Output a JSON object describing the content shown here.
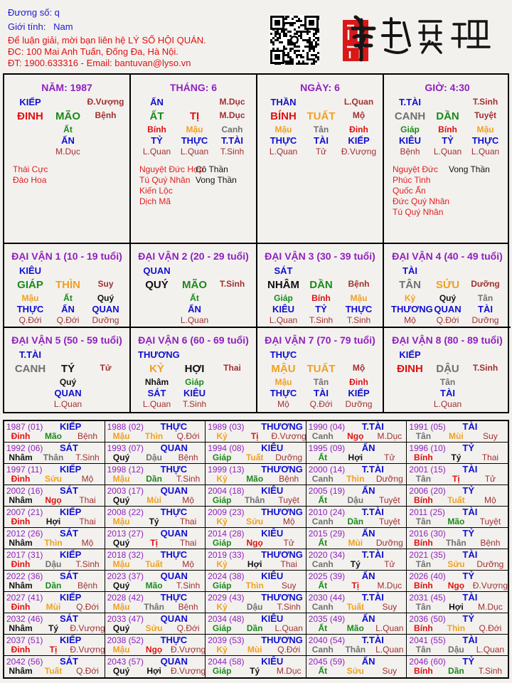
{
  "header": {
    "name_label": "Đương số:",
    "name_value": "q",
    "gender_label": "Giới tính:",
    "gender_value": "Nam",
    "contact_line": "Để luận giải, mời bạn liên hệ LÝ SỐ HỘI QUÁN.",
    "address_line": "ĐC: 100 Mai Anh Tuấn, Đống Đa, Hà Nội.",
    "phone_line": "ĐT: 1900.633316 - Email: bantuvan@lyso.vn",
    "logo_text": "南越數理"
  },
  "colors": {
    "wood": "#1a8a1a",
    "fire": "#e01010",
    "earth": "#f0a020",
    "metal": "#707070",
    "water": "#111111",
    "star": "#1010d0",
    "title": "#9020c0",
    "stage": "#a03030"
  },
  "pillars": [
    {
      "title": "NĂM: 1987",
      "star": "KIẾP",
      "stage_top": "Đ.Vượng",
      "stem": "ĐINH",
      "branch": "MÃO",
      "stage": "Bệnh",
      "hidden": [
        "",
        "Ất",
        ""
      ],
      "hidden_stars": [
        "",
        "ẤN",
        ""
      ],
      "hidden_stages": [
        "",
        "M.Dục",
        ""
      ],
      "shensha_left": [
        "Thái Cực",
        "Đào Hoa"
      ],
      "shensha_right": []
    },
    {
      "title": "THÁNG: 6",
      "star": "ẤN",
      "stage_top": "M.Dục",
      "stem": "ẤT",
      "branch": "TỊ",
      "stage": "M.Dục",
      "hidden": [
        "Bính",
        "Mậu",
        "Canh"
      ],
      "hidden_stars": [
        "TỶ",
        "THỰC",
        "T.TÀI"
      ],
      "hidden_stages": [
        "L.Quan",
        "L.Quan",
        "T.Sinh"
      ],
      "shensha_left": [
        "Nguyệt Đức Hợp",
        "Tú Quý Nhân",
        "Kiến Lộc",
        "Dịch Mã"
      ],
      "shensha_right": [
        "Cô Thần",
        "Vong Thần"
      ]
    },
    {
      "title": "NGÀY: 6",
      "star": "THẦN",
      "stage_top": "L.Quan",
      "stem": "BÍNH",
      "branch": "TUẤT",
      "stage": "Mộ",
      "hidden": [
        "Mậu",
        "Tân",
        "Đinh"
      ],
      "hidden_stars": [
        "THỰC",
        "TÀI",
        "KIẾP"
      ],
      "hidden_stages": [
        "L.Quan",
        "Tử",
        "Đ.Vượng"
      ],
      "shensha_left": [],
      "shensha_right": []
    },
    {
      "title": "GIỜ: 4:30",
      "star": "T.TÀI",
      "stage_top": "T.Sinh",
      "stem": "CANH",
      "branch": "DẦN",
      "stage": "Tuyệt",
      "hidden": [
        "Giáp",
        "Bính",
        "Mậu"
      ],
      "hidden_stars": [
        "KIÊU",
        "TỶ",
        "THỰC"
      ],
      "hidden_stages": [
        "Bệnh",
        "L.Quan",
        "L.Quan"
      ],
      "shensha_left": [
        "Nguyệt Đức",
        "Phúc Tinh",
        "Quốc Ấn",
        "Đức Quý Nhân",
        "Tú Quý Nhân"
      ],
      "shensha_right": [
        "Vong Thần"
      ]
    }
  ],
  "dai_van": [
    {
      "title": "ĐẠI VẬN 1 (10 - 19 tuổi)",
      "star": "KIÊU",
      "stem": "GIÁP",
      "branch": "THÌN",
      "stage": "Suy",
      "hidden": [
        "Mậu",
        "Ất",
        "Quý"
      ],
      "hidden_stars": [
        "THỰC",
        "ẤN",
        "QUAN"
      ],
      "hidden_stages": [
        "Q.Đới",
        "Q.Đới",
        "Dưỡng"
      ]
    },
    {
      "title": "ĐẠI VẬN 2 (20 - 29 tuổi)",
      "star": "QUAN",
      "stem": "QUÝ",
      "branch": "MÃO",
      "stage": "T.Sinh",
      "hidden": [
        "",
        "Ất",
        ""
      ],
      "hidden_stars": [
        "",
        "ẤN",
        ""
      ],
      "hidden_stages": [
        "",
        "L.Quan",
        ""
      ]
    },
    {
      "title": "ĐẠI VẬN 3 (30 - 39 tuổi)",
      "star": "SÁT",
      "stem": "NHÂM",
      "branch": "DẦN",
      "stage": "Bệnh",
      "hidden": [
        "Giáp",
        "Bính",
        "Mậu"
      ],
      "hidden_stars": [
        "KIÊU",
        "TỶ",
        "THỰC"
      ],
      "hidden_stages": [
        "L.Quan",
        "T.Sinh",
        "T.Sinh"
      ]
    },
    {
      "title": "ĐẠI VẬN 4 (40 - 49 tuổi)",
      "star": "TÀI",
      "stem": "TÂN",
      "branch": "SỬU",
      "stage": "Dưỡng",
      "hidden": [
        "Kỷ",
        "Quý",
        "Tân"
      ],
      "hidden_stars": [
        "THƯƠNG",
        "QUAN",
        "TÀI"
      ],
      "hidden_stages": [
        "Mộ",
        "Q.Đới",
        "Dưỡng"
      ]
    },
    {
      "title": "ĐẠI VẬN 5 (50 - 59 tuổi)",
      "star": "T.TÀI",
      "stem": "CANH",
      "branch": "TÝ",
      "stage": "Tử",
      "hidden": [
        "",
        "Quý",
        ""
      ],
      "hidden_stars": [
        "",
        "QUAN",
        ""
      ],
      "hidden_stages": [
        "",
        "L.Quan",
        ""
      ]
    },
    {
      "title": "ĐẠI VẬN 6 (60 - 69 tuổi)",
      "star": "THƯƠNG",
      "stem": "KỶ",
      "branch": "HỢI",
      "stage": "Thai",
      "hidden": [
        "Nhâm",
        "Giáp",
        ""
      ],
      "hidden_stars": [
        "SÁT",
        "KIÊU",
        ""
      ],
      "hidden_stages": [
        "L.Quan",
        "T.Sinh",
        ""
      ]
    },
    {
      "title": "ĐẠI VẬN 7 (70 - 79 tuổi)",
      "star": "THỰC",
      "stem": "MẬU",
      "branch": "TUẤT",
      "stage": "Mộ",
      "hidden": [
        "Mậu",
        "Tân",
        "Đinh"
      ],
      "hidden_stars": [
        "THỰC",
        "TÀI",
        "KIẾP"
      ],
      "hidden_stages": [
        "Mộ",
        "Q.Đới",
        "Dưỡng"
      ]
    },
    {
      "title": "ĐẠI VẬN 8 (80 - 89 tuổi)",
      "star": "KIẾP",
      "stem": "ĐINH",
      "branch": "DẬU",
      "stage": "T.Sinh",
      "hidden": [
        "",
        "Tân",
        ""
      ],
      "hidden_stars": [
        "",
        "TÀI",
        ""
      ],
      "hidden_stages": [
        "",
        "L.Quan",
        ""
      ]
    }
  ],
  "years": [
    [
      "1987 (01)",
      "KIẾP",
      "Đinh",
      "Mão",
      "Bệnh"
    ],
    [
      "1988 (02)",
      "THỰC",
      "Mậu",
      "Thìn",
      "Q.Đới"
    ],
    [
      "1989 (03)",
      "THƯƠNG",
      "Kỷ",
      "Tị",
      "Đ.Vượng"
    ],
    [
      "1990 (04)",
      "T.TÀI",
      "Canh",
      "Ngọ",
      "M.Dục"
    ],
    [
      "1991 (05)",
      "TÀI",
      "Tân",
      "Mùi",
      "Suy"
    ],
    [
      "1992 (06)",
      "SÁT",
      "Nhâm",
      "Thân",
      "T.Sinh"
    ],
    [
      "1993 (07)",
      "QUAN",
      "Quý",
      "Dậu",
      "Bệnh"
    ],
    [
      "1994 (08)",
      "KIÊU",
      "Giáp",
      "Tuất",
      "Dưỡng"
    ],
    [
      "1995 (09)",
      "ẤN",
      "Ất",
      "Hợi",
      "Tử"
    ],
    [
      "1996 (10)",
      "TỶ",
      "Bính",
      "Tý",
      "Thai"
    ],
    [
      "1997 (11)",
      "KIẾP",
      "Đinh",
      "Sửu",
      "Mộ"
    ],
    [
      "1998 (12)",
      "THỰC",
      "Mậu",
      "Dần",
      "T.Sinh"
    ],
    [
      "1999 (13)",
      "THƯƠNG",
      "Kỷ",
      "Mão",
      "Bệnh"
    ],
    [
      "2000 (14)",
      "T.TÀI",
      "Canh",
      "Thìn",
      "Dưỡng"
    ],
    [
      "2001 (15)",
      "TÀI",
      "Tân",
      "Tị",
      "Tử"
    ],
    [
      "2002 (16)",
      "SÁT",
      "Nhâm",
      "Ngọ",
      "Thai"
    ],
    [
      "2003 (17)",
      "QUAN",
      "Quý",
      "Mùi",
      "Mộ"
    ],
    [
      "2004 (18)",
      "KIÊU",
      "Giáp",
      "Thân",
      "Tuyệt"
    ],
    [
      "2005 (19)",
      "ẤN",
      "Ất",
      "Dậu",
      "Tuyệt"
    ],
    [
      "2006 (20)",
      "TỶ",
      "Bính",
      "Tuất",
      "Mộ"
    ],
    [
      "2007 (21)",
      "KIẾP",
      "Đinh",
      "Hợi",
      "Thai"
    ],
    [
      "2008 (22)",
      "THỰC",
      "Mậu",
      "Tý",
      "Thai"
    ],
    [
      "2009 (23)",
      "THƯƠNG",
      "Kỷ",
      "Sửu",
      "Mộ"
    ],
    [
      "2010 (24)",
      "T.TÀI",
      "Canh",
      "Dần",
      "Tuyệt"
    ],
    [
      "2011 (25)",
      "TÀI",
      "Tân",
      "Mão",
      "Tuyệt"
    ],
    [
      "2012 (26)",
      "SÁT",
      "Nhâm",
      "Thìn",
      "Mộ"
    ],
    [
      "2013 (27)",
      "QUAN",
      "Quý",
      "Tị",
      "Thai"
    ],
    [
      "2014 (28)",
      "KIÊU",
      "Giáp",
      "Ngọ",
      "Tử"
    ],
    [
      "2015 (29)",
      "ẤN",
      "Ất",
      "Mùi",
      "Dưỡng"
    ],
    [
      "2016 (30)",
      "TỶ",
      "Bính",
      "Thân",
      "Bệnh"
    ],
    [
      "2017 (31)",
      "KIẾP",
      "Đinh",
      "Dậu",
      "T.Sinh"
    ],
    [
      "2018 (32)",
      "THỰC",
      "Mậu",
      "Tuất",
      "Mộ"
    ],
    [
      "2019 (33)",
      "THƯƠNG",
      "Kỷ",
      "Hợi",
      "Thai"
    ],
    [
      "2020 (34)",
      "T.TÀI",
      "Canh",
      "Tý",
      "Tử"
    ],
    [
      "2021 (35)",
      "TÀI",
      "Tân",
      "Sửu",
      "Dưỡng"
    ],
    [
      "2022 (36)",
      "SÁT",
      "Nhâm",
      "Dần",
      "Bệnh"
    ],
    [
      "2023 (37)",
      "QUAN",
      "Quý",
      "Mão",
      "T.Sinh"
    ],
    [
      "2024 (38)",
      "KIÊU",
      "Giáp",
      "Thìn",
      "Suy"
    ],
    [
      "2025 (39)",
      "ẤN",
      "Ất",
      "Tị",
      "M.Dục"
    ],
    [
      "2026 (40)",
      "TỶ",
      "Bính",
      "Ngọ",
      "Đ.Vượng"
    ],
    [
      "2027 (41)",
      "KIẾP",
      "Đinh",
      "Mùi",
      "Q.Đới"
    ],
    [
      "2028 (42)",
      "THỰC",
      "Mậu",
      "Thân",
      "Bệnh"
    ],
    [
      "2029 (43)",
      "THƯƠNG",
      "Kỷ",
      "Dậu",
      "T.Sinh"
    ],
    [
      "2030 (44)",
      "T.TÀI",
      "Canh",
      "Tuất",
      "Suy"
    ],
    [
      "2031 (45)",
      "TÀI",
      "Tân",
      "Hợi",
      "M.Dục"
    ],
    [
      "2032 (46)",
      "SÁT",
      "Nhâm",
      "Tý",
      "Đ.Vượng"
    ],
    [
      "2033 (47)",
      "QUAN",
      "Quý",
      "Sửu",
      "Q.Đới"
    ],
    [
      "2034 (48)",
      "KIÊU",
      "Giáp",
      "Dần",
      "L.Quan"
    ],
    [
      "2035 (49)",
      "ẤN",
      "Ất",
      "Mão",
      "L.Quan"
    ],
    [
      "2036 (50)",
      "TỶ",
      "Bính",
      "Thìn",
      "Q.Đới"
    ],
    [
      "2037 (51)",
      "KIẾP",
      "Đinh",
      "Tị",
      "Đ.Vượng"
    ],
    [
      "2038 (52)",
      "THỰC",
      "Mậu",
      "Ngọ",
      "Đ.Vượng"
    ],
    [
      "2039 (53)",
      "THƯƠNG",
      "Kỷ",
      "Mùi",
      "Q.Đới"
    ],
    [
      "2040 (54)",
      "T.TÀI",
      "Canh",
      "Thân",
      "L.Quan"
    ],
    [
      "2041 (55)",
      "TÀI",
      "Tân",
      "Dậu",
      "L.Quan"
    ],
    [
      "2042 (56)",
      "SÁT",
      "Nhâm",
      "Tuất",
      "Q.Đới"
    ],
    [
      "2043 (57)",
      "QUAN",
      "Quý",
      "Hợi",
      "Đ.Vượng"
    ],
    [
      "2044 (58)",
      "KIÊU",
      "Giáp",
      "Tý",
      "M.Dục"
    ],
    [
      "2045 (59)",
      "ẤN",
      "Ất",
      "Sửu",
      "Suy"
    ],
    [
      "2046 (60)",
      "TỶ",
      "Bính",
      "Dần",
      "T.Sinh"
    ]
  ]
}
